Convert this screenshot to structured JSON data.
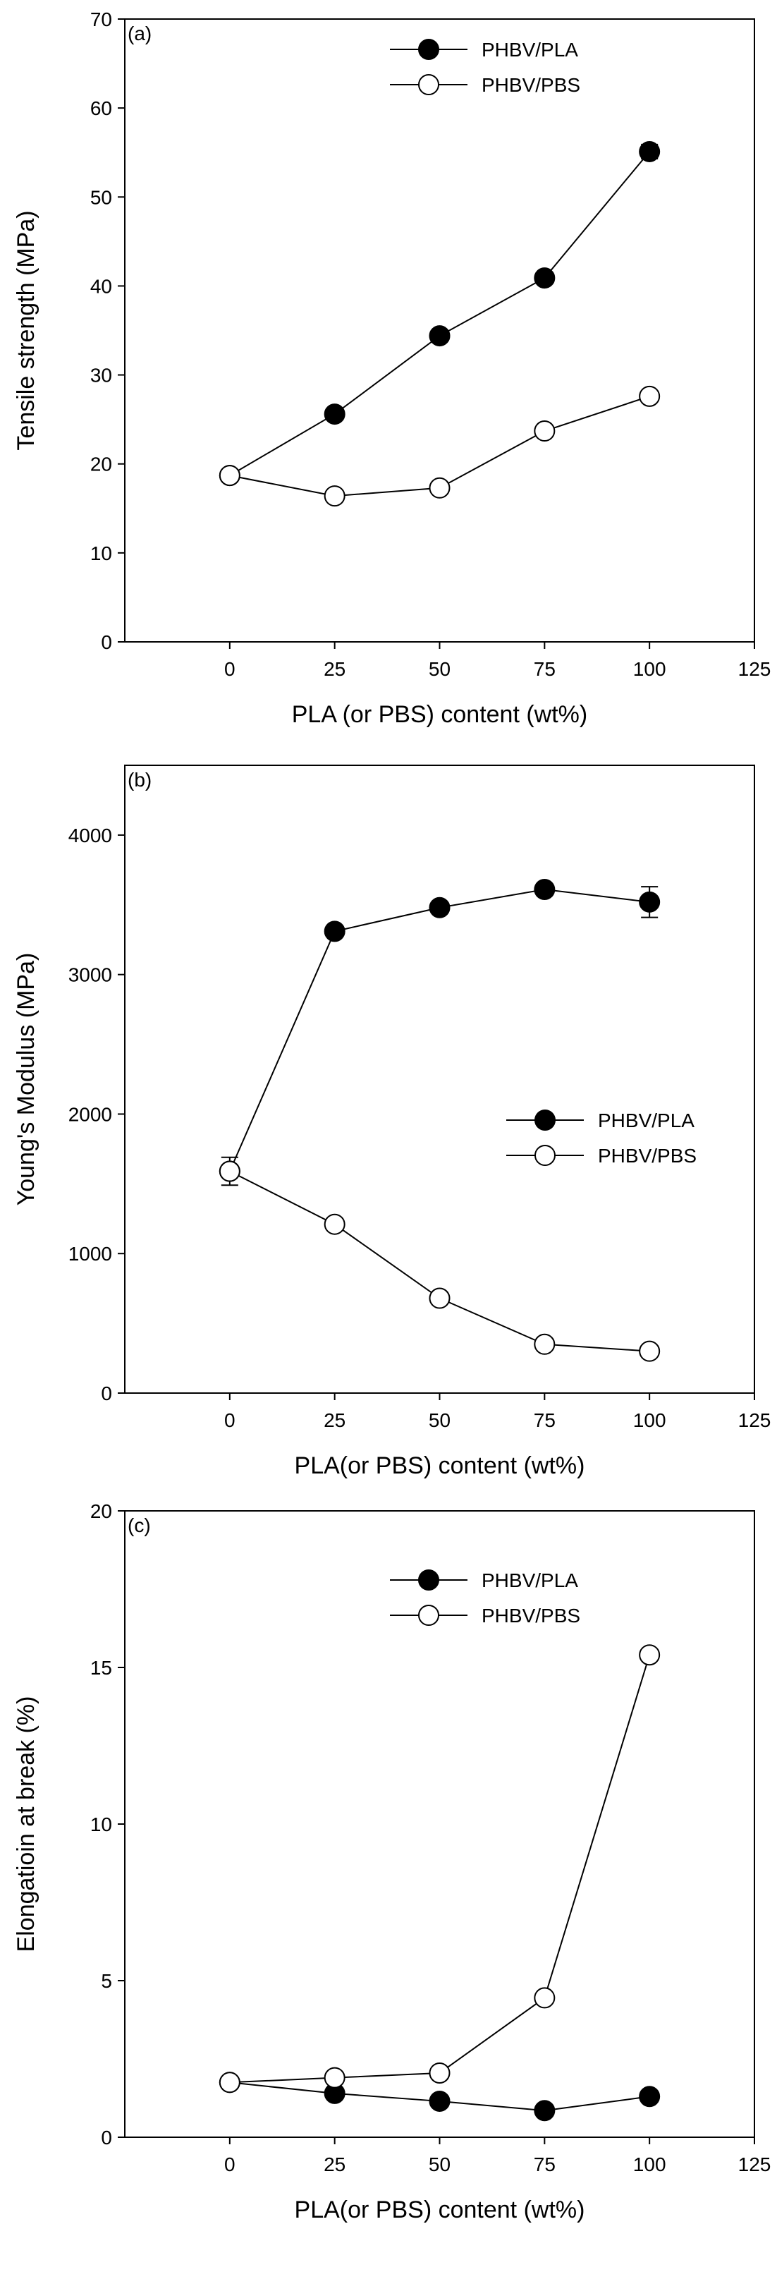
{
  "chart_data": [
    {
      "type": "line",
      "panel_label": "(a)",
      "xlabel": "PLA (or PBS)  content (wt%)",
      "ylabel": "Tensile strength (MPa)",
      "xlim": [
        -25,
        125
      ],
      "ylim": [
        0,
        70
      ],
      "xticks": [
        "0",
        "25",
        "50",
        "75",
        "100",
        "125"
      ],
      "yticks": [
        "0",
        "10",
        "20",
        "30",
        "40",
        "50",
        "60",
        "70"
      ],
      "x": [
        0,
        25,
        50,
        75,
        100
      ],
      "grid": false,
      "legend_position": "top-center",
      "series": [
        {
          "name": "PHBV/PLA",
          "marker": "filled-circle",
          "values": [
            18.7,
            25.6,
            34.4,
            40.9,
            55.1
          ],
          "error": [
            0,
            0,
            0,
            0,
            0.8
          ]
        },
        {
          "name": "PHBV/PBS",
          "marker": "open-circle",
          "values": [
            18.7,
            16.4,
            17.3,
            23.7,
            27.6
          ],
          "error": [
            0,
            0,
            0,
            0,
            0
          ]
        }
      ]
    },
    {
      "type": "line",
      "panel_label": "(b)",
      "xlabel": "PLA(or PBS)  content (wt%)",
      "ylabel": "Young's Modulus (MPa)",
      "xlim": [
        -25,
        125
      ],
      "ylim": [
        0,
        4500
      ],
      "xticks": [
        "0",
        "25",
        "50",
        "75",
        "100",
        "125"
      ],
      "yticks": [
        "0",
        "1000",
        "2000",
        "3000",
        "4000"
      ],
      "x": [
        0,
        25,
        50,
        75,
        100
      ],
      "grid": false,
      "legend_position": "center-right",
      "series": [
        {
          "name": "PHBV/PLA",
          "marker": "filled-circle",
          "values": [
            1590,
            3310,
            3480,
            3610,
            3520
          ],
          "error": [
            0,
            0,
            0,
            0,
            110
          ]
        },
        {
          "name": "PHBV/PBS",
          "marker": "open-circle",
          "values": [
            1590,
            1210,
            680,
            350,
            300
          ],
          "error": [
            100,
            0,
            0,
            0,
            0
          ]
        }
      ]
    },
    {
      "type": "line",
      "panel_label": "(c)",
      "xlabel": "PLA(or PBS)  content (wt%)",
      "ylabel": "Elongatioin at break (%)",
      "xlim": [
        -25,
        125
      ],
      "ylim": [
        0,
        20
      ],
      "xticks": [
        "0",
        "25",
        "50",
        "75",
        "100",
        "125"
      ],
      "yticks": [
        "0",
        "5",
        "10",
        "15",
        "20"
      ],
      "x": [
        0,
        25,
        50,
        75,
        100
      ],
      "grid": false,
      "legend_position": "top-center",
      "series": [
        {
          "name": "PHBV/PLA",
          "marker": "filled-circle",
          "values": [
            1.75,
            1.4,
            1.15,
            0.85,
            1.3
          ],
          "error": [
            0,
            0,
            0,
            0,
            0
          ]
        },
        {
          "name": "PHBV/PBS",
          "marker": "open-circle",
          "values": [
            1.75,
            1.9,
            2.05,
            4.45,
            15.4
          ],
          "error": [
            0,
            0,
            0,
            0,
            0
          ]
        }
      ]
    }
  ]
}
